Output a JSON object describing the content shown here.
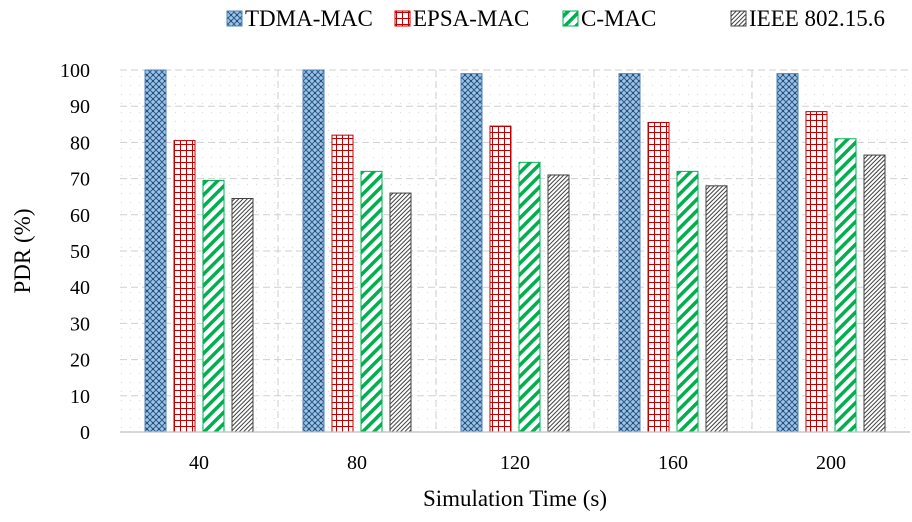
{
  "chart_data": {
    "type": "bar",
    "title": "",
    "xlabel": "Simulation Time (s)",
    "ylabel": "PDR (%)",
    "ylim": [
      0,
      100
    ],
    "yticks": [
      0,
      10,
      20,
      30,
      40,
      50,
      60,
      70,
      80,
      90,
      100
    ],
    "categories": [
      "40",
      "80",
      "120",
      "160",
      "200"
    ],
    "grid": true,
    "legend_position": "top",
    "series": [
      {
        "name": "TDMA-MAC",
        "values": [
          100,
          100,
          99,
          99,
          99
        ],
        "color": "#4f81bd",
        "pattern": "crosshatch-dots"
      },
      {
        "name": "EPSA-MAC",
        "values": [
          80.5,
          82,
          84.5,
          85.5,
          88.5
        ],
        "color": "#c00000",
        "pattern": "grid"
      },
      {
        "name": "C-MAC",
        "values": [
          69.5,
          72,
          74.5,
          72,
          81
        ],
        "color": "#00b050",
        "pattern": "wide-diagonal"
      },
      {
        "name": "IEEE 802.15.6",
        "values": [
          64.5,
          66,
          71,
          68,
          76.5
        ],
        "color": "#404040",
        "pattern": "dense-diagonal"
      }
    ]
  }
}
